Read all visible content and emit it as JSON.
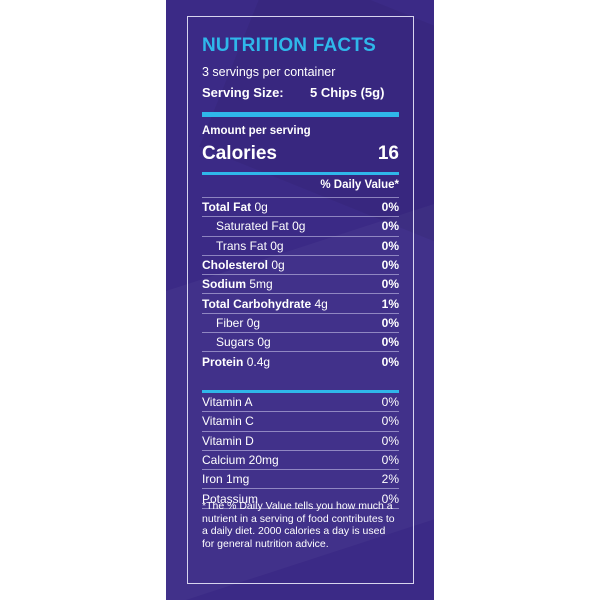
{
  "label": {
    "title": "NUTRITION FACTS",
    "servings_per_container": "3 servings per container",
    "serving_size_label": "Serving Size:",
    "serving_size_value": "5 Chips (5g)",
    "amount_per_serving": "Amount per serving",
    "calories_label": "Calories",
    "calories_value": "16",
    "daily_value_header": "% Daily Value*",
    "nutrients": [
      {
        "name": "Total Fat",
        "amount": "0g",
        "dv": "0%"
      },
      {
        "name": "Saturated Fat",
        "amount": "0g",
        "dv": "0%"
      },
      {
        "name": "Trans Fat",
        "amount": "0g",
        "dv": "0%"
      },
      {
        "name": "Cholesterol",
        "amount": "0g",
        "dv": "0%"
      },
      {
        "name": "Sodium",
        "amount": "5mg",
        "dv": "0%"
      },
      {
        "name": "Total Carbohydrate",
        "amount": "4g",
        "dv": "1%"
      },
      {
        "name": "Fiber",
        "amount": "0g",
        "dv": "0%"
      },
      {
        "name": "Sugars",
        "amount": "0g",
        "dv": "0%"
      },
      {
        "name": "Protein",
        "amount": "0.4g",
        "dv": "0%"
      }
    ],
    "vitamins": [
      {
        "name": "Vitamin A",
        "dv": "0%"
      },
      {
        "name": "Vitamin C",
        "dv": "0%"
      },
      {
        "name": "Vitamin D",
        "dv": "0%"
      },
      {
        "name": "Calcium 20mg",
        "dv": "0%"
      },
      {
        "name": "Iron 1mg",
        "dv": "2%"
      },
      {
        "name": "Potassium",
        "dv": "0%"
      }
    ],
    "footnote": "*The % Daily Value tells you how much a nutrient in a serving of food contributes to a daily diet. 2000 calories a day is used for general nutrition advice."
  },
  "colors": {
    "panel_background": "#3b2a86",
    "accent": "#2fb7ea",
    "text": "#ffffff"
  }
}
